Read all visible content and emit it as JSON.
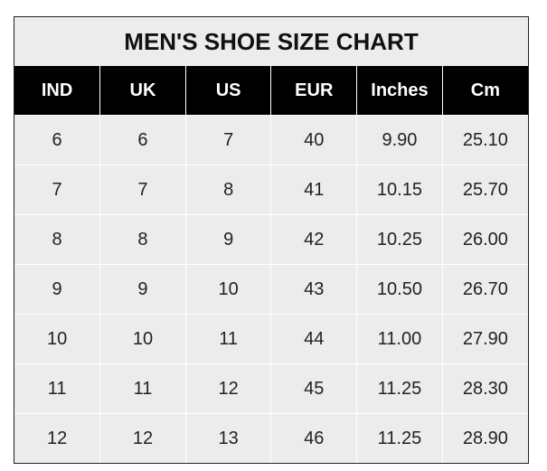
{
  "title": "MEN'S SHOE SIZE CHART",
  "headers": [
    "IND",
    "UK",
    "US",
    "EUR",
    "Inches",
    "Cm"
  ],
  "rows": [
    [
      "6",
      "6",
      "7",
      "40",
      "9.90",
      "25.10"
    ],
    [
      "7",
      "7",
      "8",
      "41",
      "10.15",
      "25.70"
    ],
    [
      "8",
      "8",
      "9",
      "42",
      "10.25",
      "26.00"
    ],
    [
      "9",
      "9",
      "10",
      "43",
      "10.50",
      "26.70"
    ],
    [
      "10",
      "10",
      "11",
      "44",
      "11.00",
      "27.90"
    ],
    [
      "11",
      "11",
      "12",
      "45",
      "11.25",
      "28.30"
    ],
    [
      "12",
      "12",
      "13",
      "46",
      "11.25",
      "28.90"
    ]
  ],
  "colors": {
    "header_bg": "#000000",
    "body_bg": "#ececec",
    "grid": "#ffffff"
  }
}
